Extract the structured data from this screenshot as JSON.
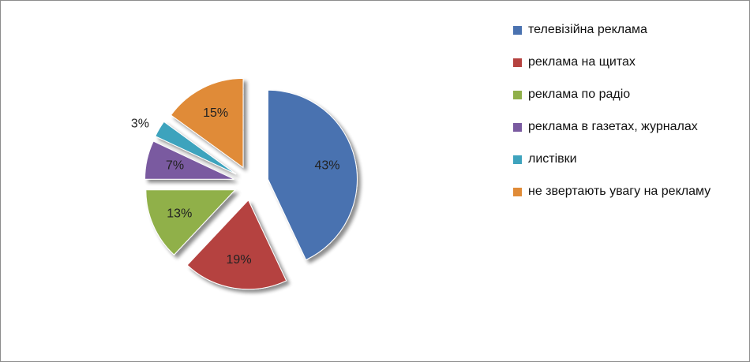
{
  "chart_data": {
    "type": "pie",
    "style": "exploded-3d",
    "categories": [
      "телевізійна реклама",
      "реклама на щитах",
      "реклама по радіо",
      "реклама в газетах, журналах",
      "листівки",
      "не звертають увагу на рекламу"
    ],
    "values": [
      43,
      19,
      13,
      7,
      3,
      15
    ],
    "data_labels": [
      "43%",
      "19%",
      "13%",
      "7%",
      "3%",
      "15%"
    ],
    "colors": [
      "#4a72b0",
      "#b5423f",
      "#90b04a",
      "#7a5aa0",
      "#3ea3bd",
      "#e08b37"
    ],
    "legend_position": "right"
  },
  "legend": {
    "items": [
      {
        "label": "телевізійна реклама",
        "color": "#4a72b0"
      },
      {
        "label": "реклама на щитах",
        "color": "#b5423f"
      },
      {
        "label": "реклама по радіо",
        "color": "#90b04a"
      },
      {
        "label": "реклама в газетах, журналах",
        "color": "#7a5aa0"
      },
      {
        "label": "листівки",
        "color": "#3ea3bd"
      },
      {
        "label": "не звертають увагу на рекламу",
        "color": "#e08b37"
      }
    ]
  }
}
